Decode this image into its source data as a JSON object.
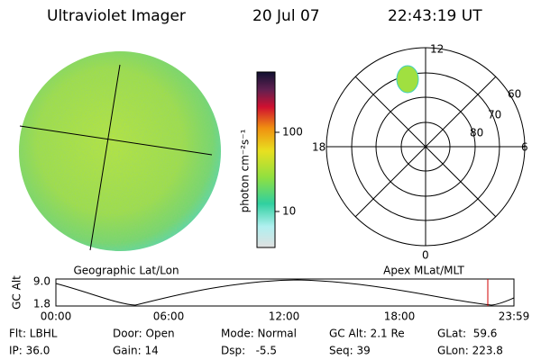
{
  "header": {
    "title": "Ultraviolet Imager",
    "date": "20 Jul 07",
    "time": "22:43:19 UT"
  },
  "image_panel": {
    "label": "Geographic Lat/Lon"
  },
  "colorbar": {
    "unit": "photon cm⁻²s⁻¹",
    "ticks": [
      "100",
      "10"
    ]
  },
  "polar_panel": {
    "label": "Apex MLat/MLT",
    "mlt": [
      "12",
      "18",
      "6",
      "0"
    ],
    "lat": [
      "60",
      "70",
      "80"
    ]
  },
  "altitude_plot": {
    "ylabel": "GC Alt",
    "yticks": [
      "9.0",
      "1.8"
    ],
    "xticks": [
      "00:00",
      "06:00",
      "12:00",
      "18:00",
      "23:59"
    ]
  },
  "info": [
    [
      "Flt: LBHL",
      "Door: Open",
      "Mode: Normal",
      "GC Alt: 2.1 Re",
      "GLat:  59.6"
    ],
    [
      "IP: 36.0",
      "Gain: 14",
      "Dsp:   -5.5",
      "Seq: 39",
      "GLon: 223.8"
    ]
  ]
}
